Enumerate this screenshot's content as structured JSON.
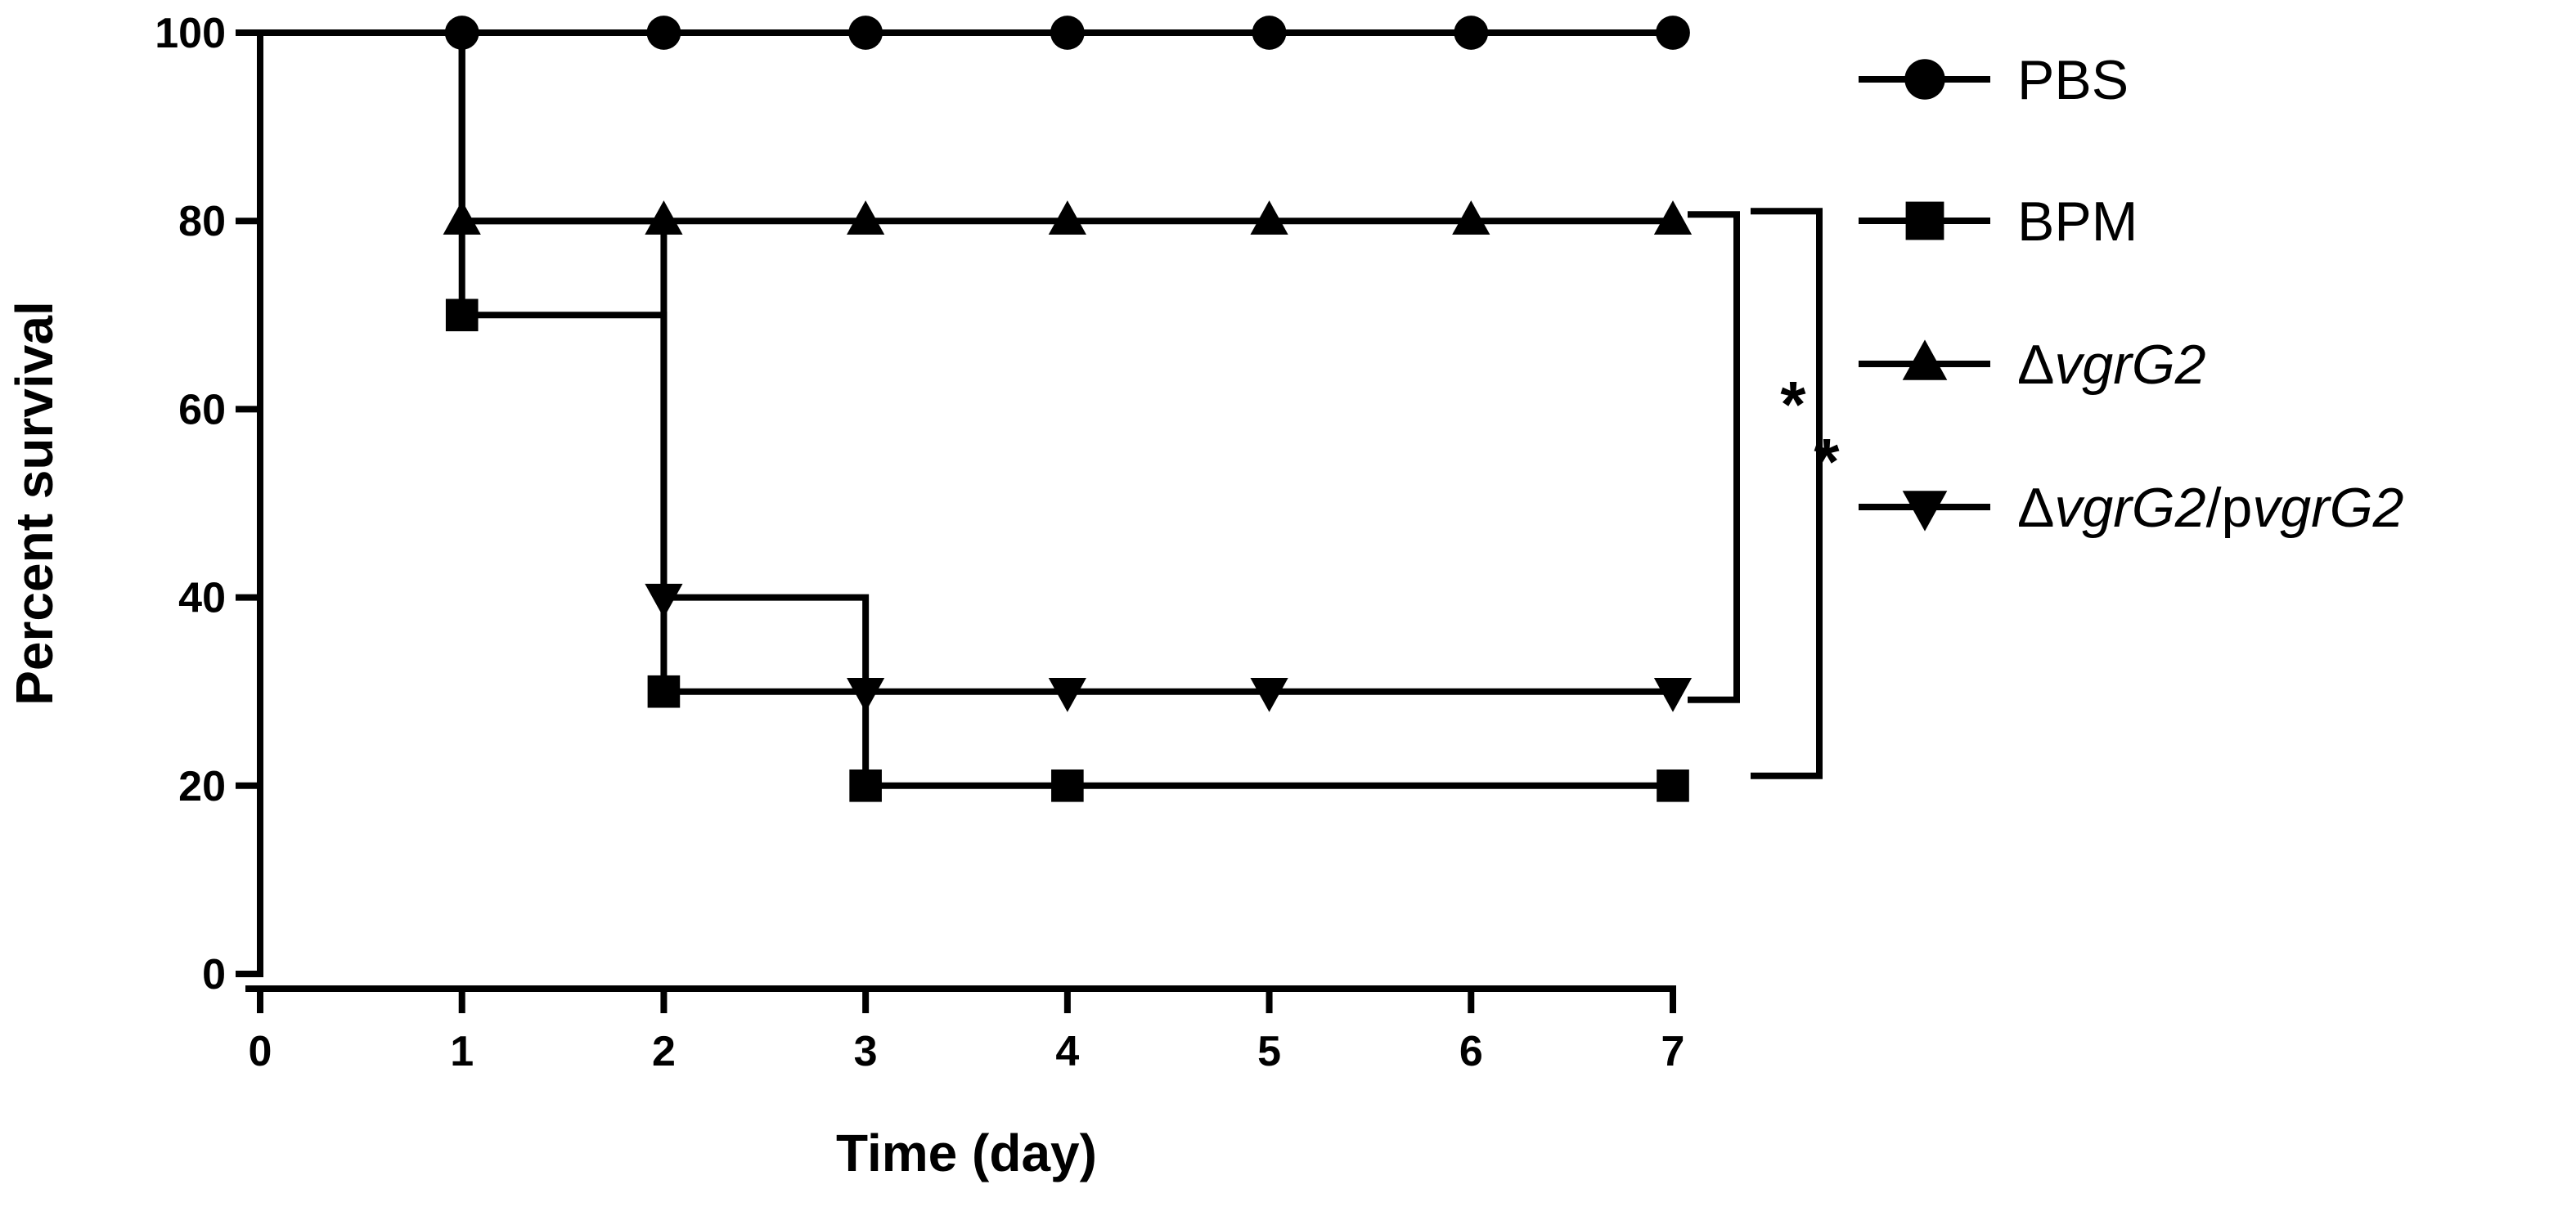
{
  "chart_data": {
    "type": "line",
    "subtype": "kaplan-meier-step",
    "xlabel": "Time (day)",
    "ylabel": "Percent survival",
    "xlim": [
      0,
      7
    ],
    "ylim": [
      0,
      100
    ],
    "xticks": [
      "0",
      "1",
      "2",
      "3",
      "4",
      "5",
      "6",
      "7"
    ],
    "yticks": [
      "0",
      "20",
      "40",
      "60",
      "80",
      "100"
    ],
    "grid": false,
    "legend_position": "right",
    "color": "#000000",
    "series": [
      {
        "name": "PBS",
        "marker": "circle",
        "steps": [
          [
            0,
            100
          ],
          [
            7,
            100
          ]
        ],
        "points": [
          [
            1,
            100
          ],
          [
            2,
            100
          ],
          [
            3,
            100
          ],
          [
            4,
            100
          ],
          [
            5,
            100
          ],
          [
            6,
            100
          ],
          [
            7,
            100
          ]
        ]
      },
      {
        "name": "BPM",
        "marker": "square",
        "steps": [
          [
            0,
            100
          ],
          [
            1,
            100
          ],
          [
            1,
            70
          ],
          [
            2,
            70
          ],
          [
            2,
            30
          ],
          [
            3,
            30
          ],
          [
            3,
            20
          ],
          [
            7,
            20
          ]
        ],
        "points": [
          [
            1,
            70
          ],
          [
            2,
            30
          ],
          [
            3,
            20
          ],
          [
            4,
            20
          ],
          [
            7,
            20
          ]
        ]
      },
      {
        "name": "ΔvgrG2",
        "marker": "triangle-up",
        "steps": [
          [
            0,
            100
          ],
          [
            1,
            100
          ],
          [
            1,
            80
          ],
          [
            7,
            80
          ]
        ],
        "points": [
          [
            1,
            80
          ],
          [
            2,
            80
          ],
          [
            3,
            80
          ],
          [
            4,
            80
          ],
          [
            5,
            80
          ],
          [
            6,
            80
          ],
          [
            7,
            80
          ]
        ]
      },
      {
        "name": "ΔvgrG2/pvgrG2",
        "marker": "triangle-down",
        "steps": [
          [
            0,
            100
          ],
          [
            1,
            100
          ],
          [
            1,
            80
          ],
          [
            2,
            80
          ],
          [
            2,
            40
          ],
          [
            3,
            40
          ],
          [
            3,
            30
          ],
          [
            7,
            30
          ]
        ],
        "points": [
          [
            2,
            40
          ],
          [
            3,
            30
          ],
          [
            4,
            30
          ],
          [
            5,
            30
          ],
          [
            7,
            30
          ]
        ]
      }
    ],
    "legend": [
      {
        "marker": "circle",
        "parts": [
          {
            "text": "PBS",
            "italic": false
          }
        ]
      },
      {
        "marker": "square",
        "parts": [
          {
            "text": "BPM",
            "italic": false
          }
        ]
      },
      {
        "marker": "triangle-up",
        "parts": [
          {
            "text": "Δ",
            "italic": false
          },
          {
            "text": "vgrG2",
            "italic": true
          }
        ]
      },
      {
        "marker": "triangle-down",
        "parts": [
          {
            "text": "Δ",
            "italic": false
          },
          {
            "text": "vgrG2",
            "italic": true
          },
          {
            "text": "/p",
            "italic": false
          },
          {
            "text": "vgrG2",
            "italic": true
          }
        ]
      }
    ],
    "annotations": [
      {
        "type": "significance-bracket",
        "label": "*",
        "from_y": 80,
        "to_y": 30
      },
      {
        "type": "significance-bracket",
        "label": "*",
        "from_y": 80,
        "to_y": 20
      }
    ]
  }
}
